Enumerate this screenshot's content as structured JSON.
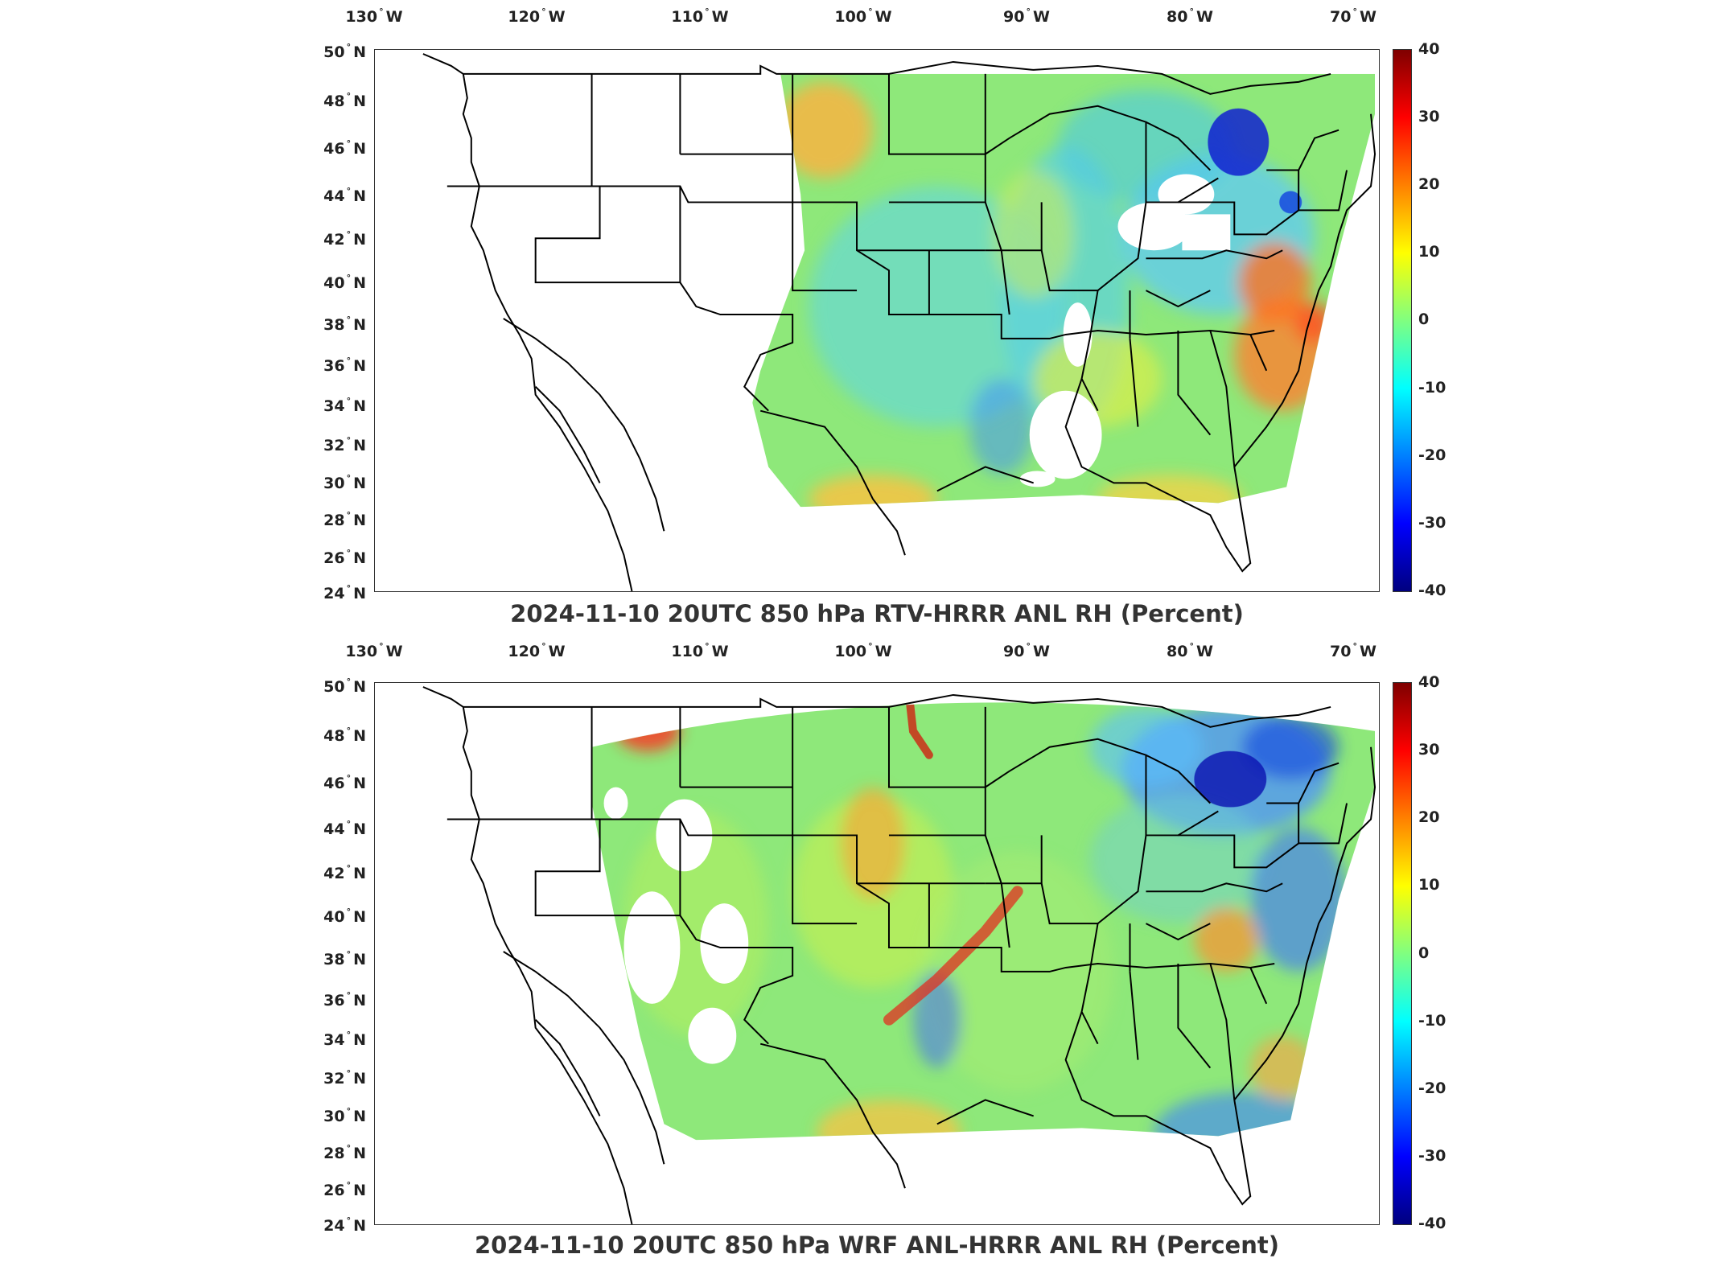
{
  "panels": [
    {
      "title": "2024-11-10 20UTC 850 hPa RTV-HRRR ANL RH (Percent)",
      "lon_labels": [
        "130",
        "120",
        "110",
        "100",
        "90",
        "80",
        "70"
      ],
      "lon_dir": "W",
      "lat_labels": [
        "50",
        "48",
        "46",
        "44",
        "42",
        "40",
        "38",
        "36",
        "34",
        "32",
        "30",
        "28",
        "26",
        "24"
      ],
      "lat_dir": "N",
      "colorbar_ticks": [
        "40",
        "30",
        "20",
        "10",
        "0",
        "-10",
        "-20",
        "-30",
        "-40"
      ]
    },
    {
      "title": "2024-11-10 20UTC 850 hPa WRF ANL-HRRR ANL RH (Percent)",
      "lon_labels": [
        "130",
        "120",
        "110",
        "100",
        "90",
        "80",
        "70"
      ],
      "lon_dir": "W",
      "lat_labels": [
        "50",
        "48",
        "46",
        "44",
        "42",
        "40",
        "38",
        "36",
        "34",
        "32",
        "30",
        "28",
        "26",
        "24"
      ],
      "lat_dir": "N",
      "colorbar_ticks": [
        "40",
        "30",
        "20",
        "10",
        "0",
        "-10",
        "-20",
        "-30",
        "-40"
      ]
    }
  ],
  "colors": {
    "colormap": [
      "#00007f",
      "#0000ff",
      "#0080ff",
      "#00ffff",
      "#80ff80",
      "#ffff00",
      "#ff8000",
      "#ff0000",
      "#7f0000"
    ],
    "borders": "#000000",
    "field_base": "#8ee87a"
  }
}
